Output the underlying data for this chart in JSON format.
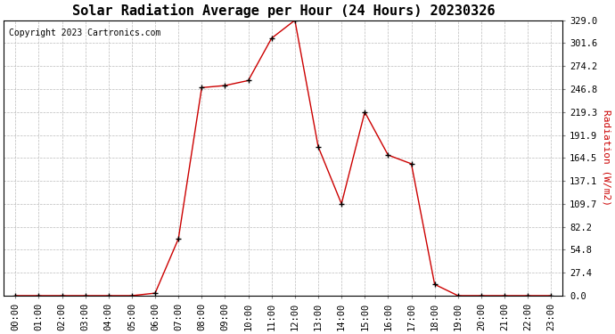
{
  "title": "Solar Radiation Average per Hour (24 Hours) 20230326",
  "copyright_text": "Copyright 2023 Cartronics.com",
  "ylabel": "Radiation (W/m2)",
  "hours": [
    "00:00",
    "01:00",
    "02:00",
    "03:00",
    "04:00",
    "05:00",
    "06:00",
    "07:00",
    "08:00",
    "09:00",
    "10:00",
    "11:00",
    "12:00",
    "13:00",
    "14:00",
    "15:00",
    "16:00",
    "17:00",
    "18:00",
    "19:00",
    "20:00",
    "21:00",
    "22:00",
    "23:00"
  ],
  "values": [
    0.0,
    0.0,
    0.0,
    0.0,
    0.0,
    0.0,
    3.0,
    68.0,
    248.5,
    251.0,
    257.0,
    307.5,
    329.0,
    178.0,
    109.7,
    219.3,
    168.0,
    157.5,
    13.5,
    0.0,
    0.0,
    0.0,
    0.0,
    0.0
  ],
  "line_color": "#cc0000",
  "marker_color": "#000000",
  "background_color": "#ffffff",
  "grid_color": "#bbbbbb",
  "title_color": "#000000",
  "ylabel_color": "#cc0000",
  "copyright_color": "#000000",
  "ylim": [
    0.0,
    329.0
  ],
  "yticks": [
    0.0,
    27.4,
    54.8,
    82.2,
    109.7,
    137.1,
    164.5,
    191.9,
    219.3,
    246.8,
    274.2,
    301.6,
    329.0
  ],
  "title_fontsize": 11,
  "axis_fontsize": 7.5,
  "copyright_fontsize": 7,
  "ylabel_fontsize": 8
}
